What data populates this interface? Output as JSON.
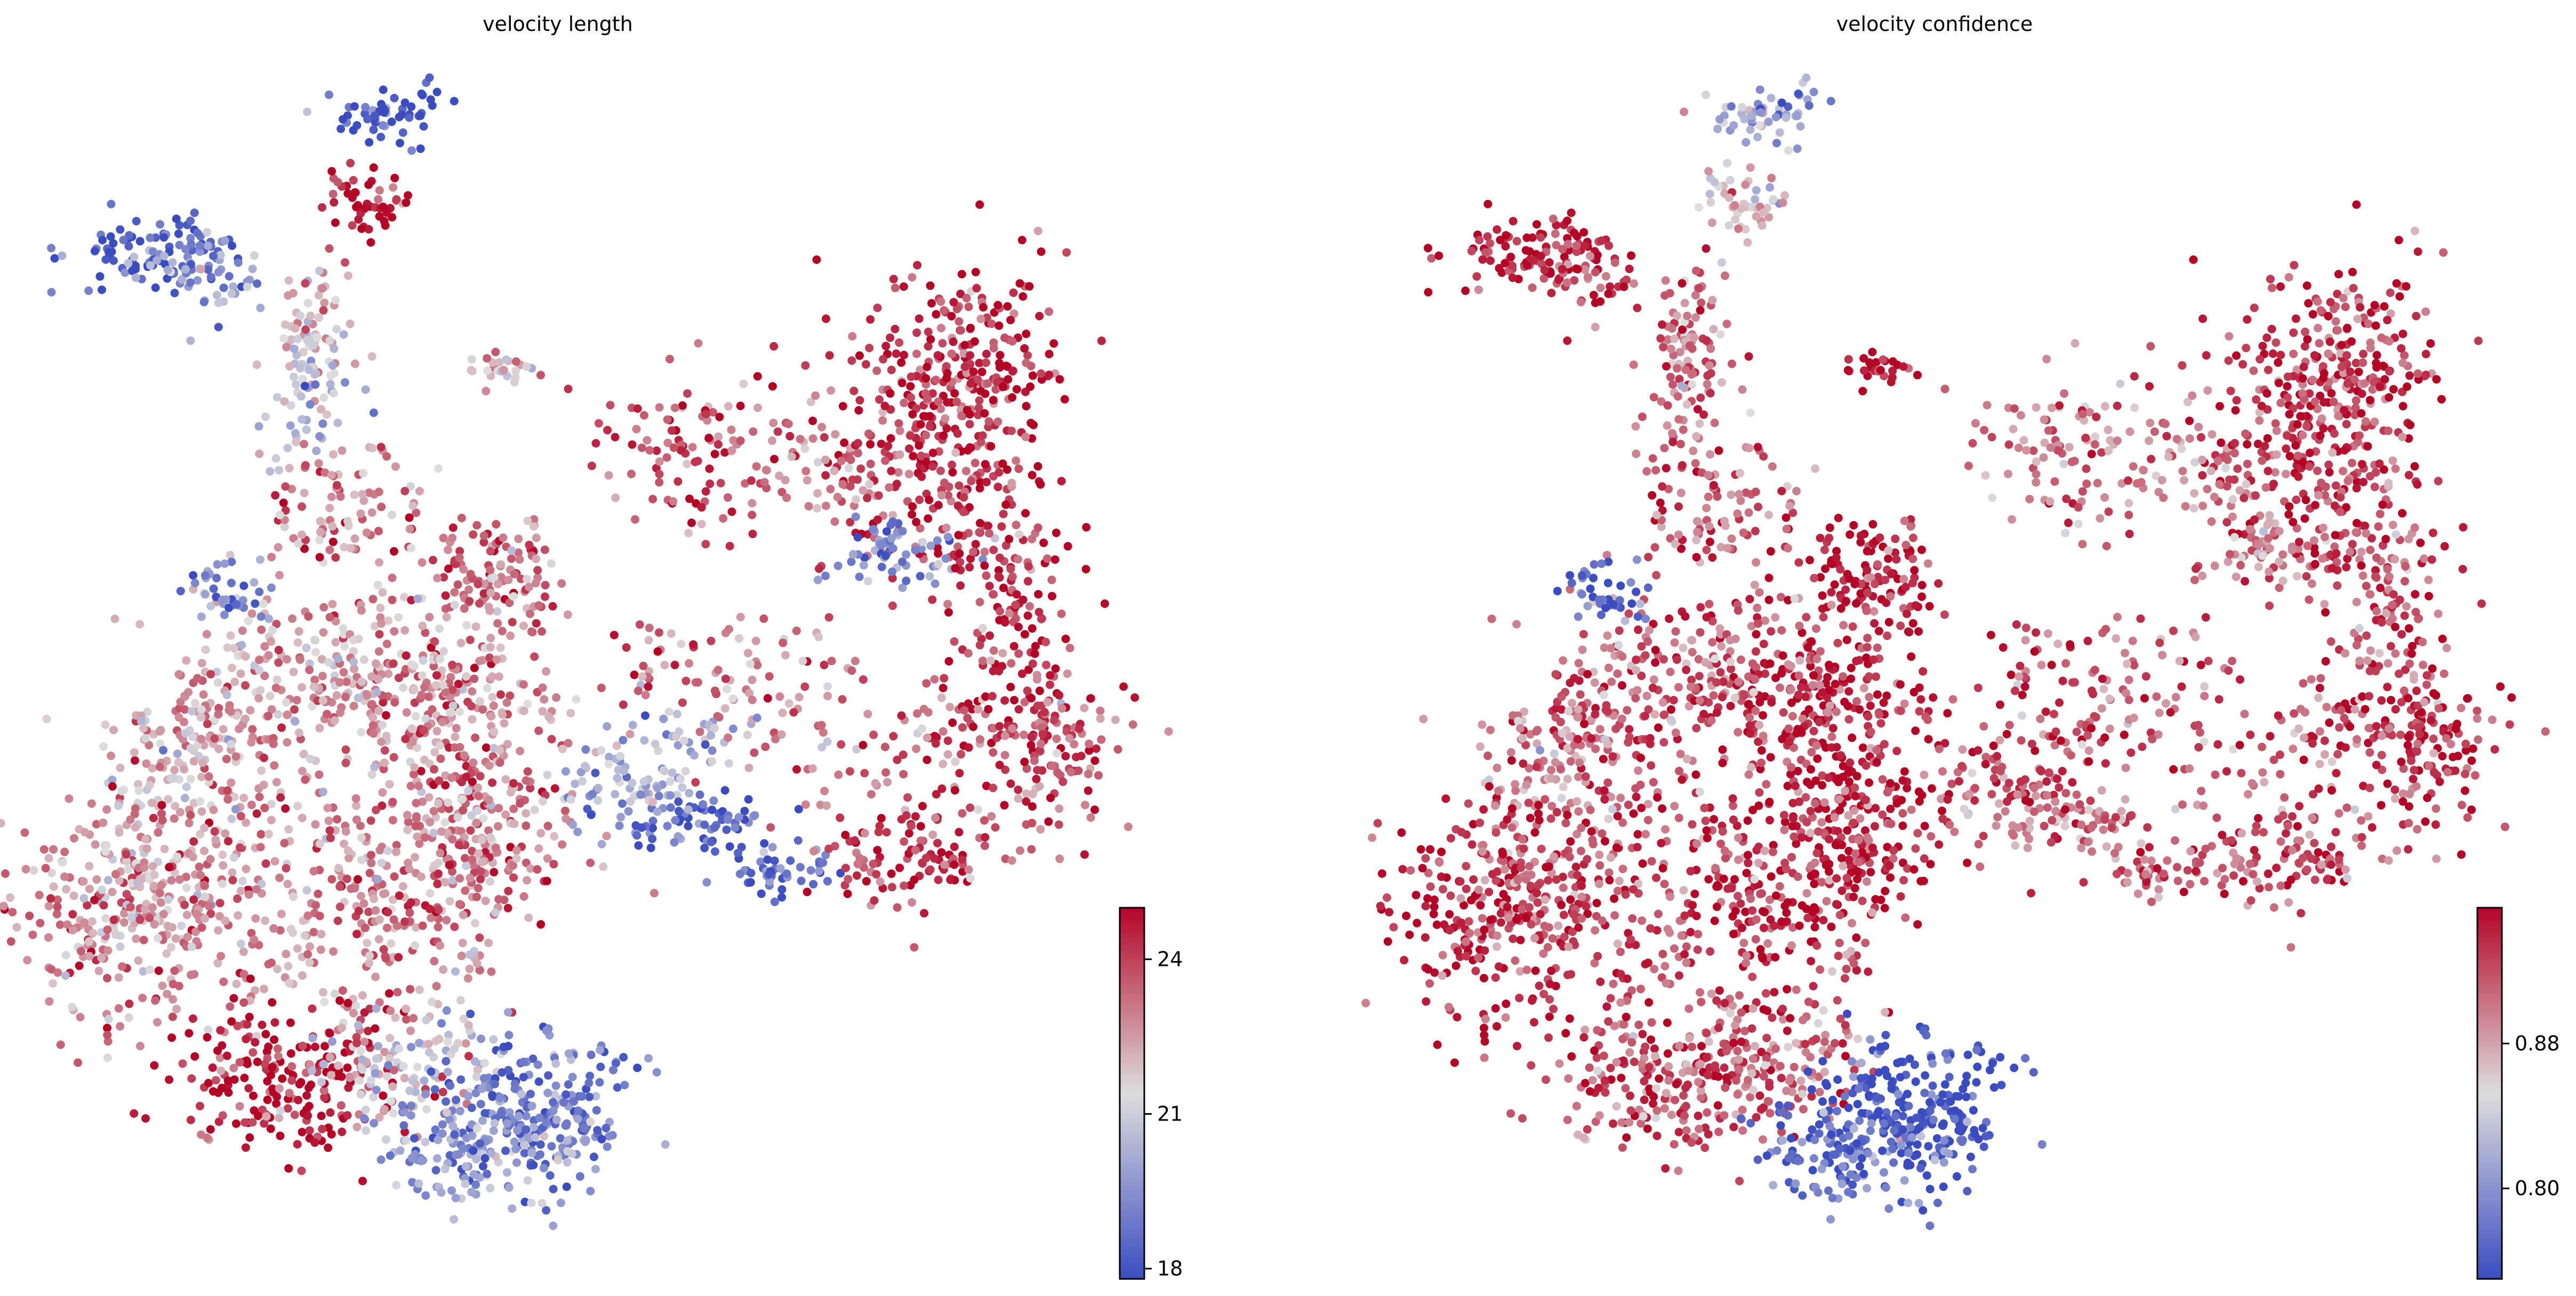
{
  "chart_data": [
    {
      "type": "scatter",
      "title": "velocity length",
      "colormap": "coolwarm",
      "colors": {
        "low": "#3b4cc0",
        "mid": "#dddddd",
        "high": "#b40426"
      },
      "colorbar": {
        "range": [
          17.8,
          25.0
        ],
        "ticks": [
          18,
          21,
          24
        ],
        "tick_labels": [
          "18",
          "21",
          "24"
        ]
      },
      "axes_visible": false,
      "grid": false
    },
    {
      "type": "scatter",
      "title": "velocity confidence",
      "colormap": "coolwarm",
      "colors": {
        "low": "#3b4cc0",
        "mid": "#dddddd",
        "high": "#b40426"
      },
      "colorbar": {
        "range": [
          0.75,
          0.955
        ],
        "ticks": [
          0.8,
          0.88
        ],
        "tick_labels": [
          "0.80",
          "0.88"
        ]
      },
      "axes_visible": false,
      "grid": false
    }
  ]
}
